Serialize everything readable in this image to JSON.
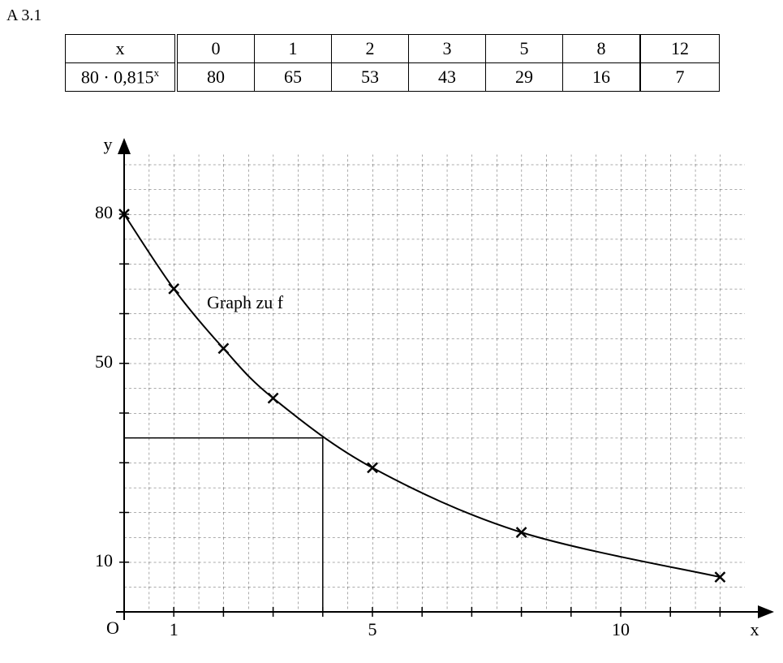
{
  "header": {
    "title": "A 3.1"
  },
  "table": {
    "row_head": [
      "x",
      {
        "base": "80 · 0,815",
        "exp": "x"
      }
    ],
    "columns": [
      [
        0,
        80
      ],
      [
        1,
        65
      ],
      [
        2,
        53
      ],
      [
        3,
        43
      ],
      [
        5,
        29
      ],
      [
        8,
        16
      ],
      [
        12,
        7
      ]
    ]
  },
  "chart_data": {
    "type": "line",
    "x_label": "x",
    "y_label": "y",
    "origin_label": "O",
    "annotation": "Graph zu f",
    "x": [
      0,
      1,
      2,
      3,
      5,
      8,
      12
    ],
    "series": [
      {
        "name": "Graph zu f",
        "color": "#000000",
        "values": [
          80,
          65,
          53,
          43,
          29,
          16,
          7
        ]
      }
    ],
    "xlim": [
      0,
      12.5
    ],
    "ylim": [
      0,
      92
    ],
    "xticks": [
      1,
      5,
      10
    ],
    "yticks": [
      10,
      50,
      80
    ],
    "x_minor_ticks": [
      2,
      3,
      4,
      6,
      7,
      8,
      9,
      11,
      12
    ],
    "y_minor_ticks": [
      20,
      30,
      40,
      60,
      70
    ],
    "reading": {
      "x": 4,
      "y": 35
    },
    "grid": true
  }
}
